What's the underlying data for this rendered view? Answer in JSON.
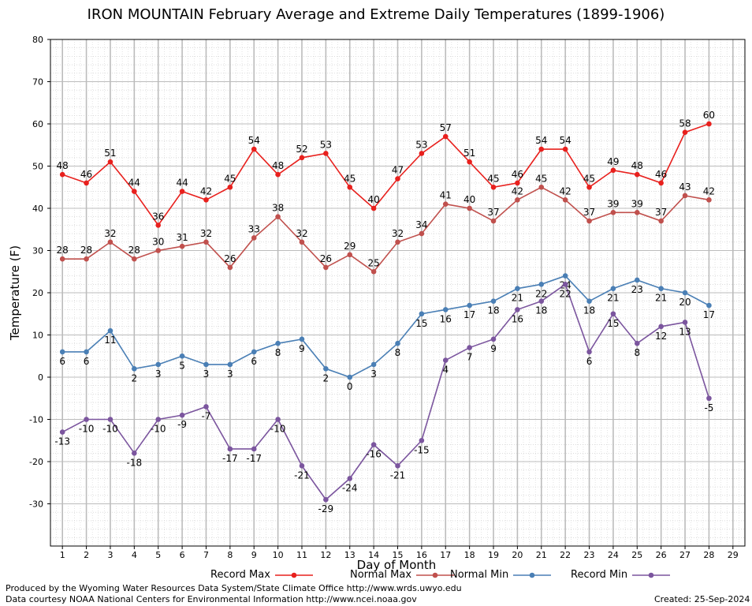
{
  "chart_data": {
    "type": "line",
    "title": "IRON MOUNTAIN February Average and Extreme Daily Temperatures (1899-1906)",
    "xlabel": "Day of Month",
    "ylabel": "Temperature (F)",
    "xlim": [
      0.5,
      29.5
    ],
    "ylim": [
      -40,
      80
    ],
    "x_ticks": [
      1,
      2,
      3,
      4,
      5,
      6,
      7,
      8,
      9,
      10,
      11,
      12,
      13,
      14,
      15,
      16,
      17,
      18,
      19,
      20,
      21,
      22,
      23,
      24,
      25,
      26,
      27,
      28,
      29
    ],
    "y_ticks": [
      -30,
      -20,
      -10,
      0,
      10,
      20,
      30,
      40,
      50,
      60,
      70,
      80
    ],
    "x": [
      1,
      2,
      3,
      4,
      5,
      6,
      7,
      8,
      9,
      10,
      11,
      12,
      13,
      14,
      15,
      16,
      17,
      18,
      19,
      20,
      21,
      22,
      23,
      24,
      25,
      26,
      27,
      28
    ],
    "grid": true,
    "legend_position": "bottom",
    "series": [
      {
        "name": "Record Max",
        "color": "#e8201d",
        "values": [
          48,
          46,
          51,
          44,
          36,
          44,
          42,
          45,
          54,
          48,
          52,
          53,
          45,
          40,
          47,
          53,
          57,
          51,
          45,
          46,
          54,
          54,
          45,
          49,
          48,
          46,
          58,
          60
        ]
      },
      {
        "name": "Normal Max",
        "color": "#c0504d",
        "values": [
          28,
          28,
          32,
          28,
          30,
          31,
          32,
          26,
          33,
          38,
          32,
          26,
          29,
          25,
          32,
          34,
          41,
          40,
          37,
          42,
          45,
          42,
          37,
          39,
          39,
          37,
          43,
          42
        ]
      },
      {
        "name": "Normal Min",
        "color": "#4a7fb5",
        "values": [
          6,
          6,
          11,
          2,
          3,
          5,
          3,
          3,
          6,
          8,
          9,
          2,
          0,
          3,
          8,
          15,
          16,
          17,
          18,
          21,
          22,
          24,
          18,
          21,
          23,
          21,
          20,
          17
        ]
      },
      {
        "name": "Record Min",
        "color": "#7b559e",
        "values": [
          -13,
          -10,
          -10,
          -18,
          -10,
          -9,
          -7,
          -17,
          -17,
          -10,
          -21,
          -29,
          -24,
          -16,
          -21,
          -15,
          4,
          7,
          9,
          16,
          18,
          22,
          6,
          15,
          8,
          12,
          13,
          -5
        ]
      }
    ]
  },
  "footer": {
    "produced_by": "Produced by the Wyoming Water Resources Data System/State Climate Office http://www.wrds.uwyo.edu",
    "courtesy": "Data courtesy NOAA National Centers for Environmental Information http://www.ncei.noaa.gov",
    "created": "Created: 25-Sep-2024"
  }
}
